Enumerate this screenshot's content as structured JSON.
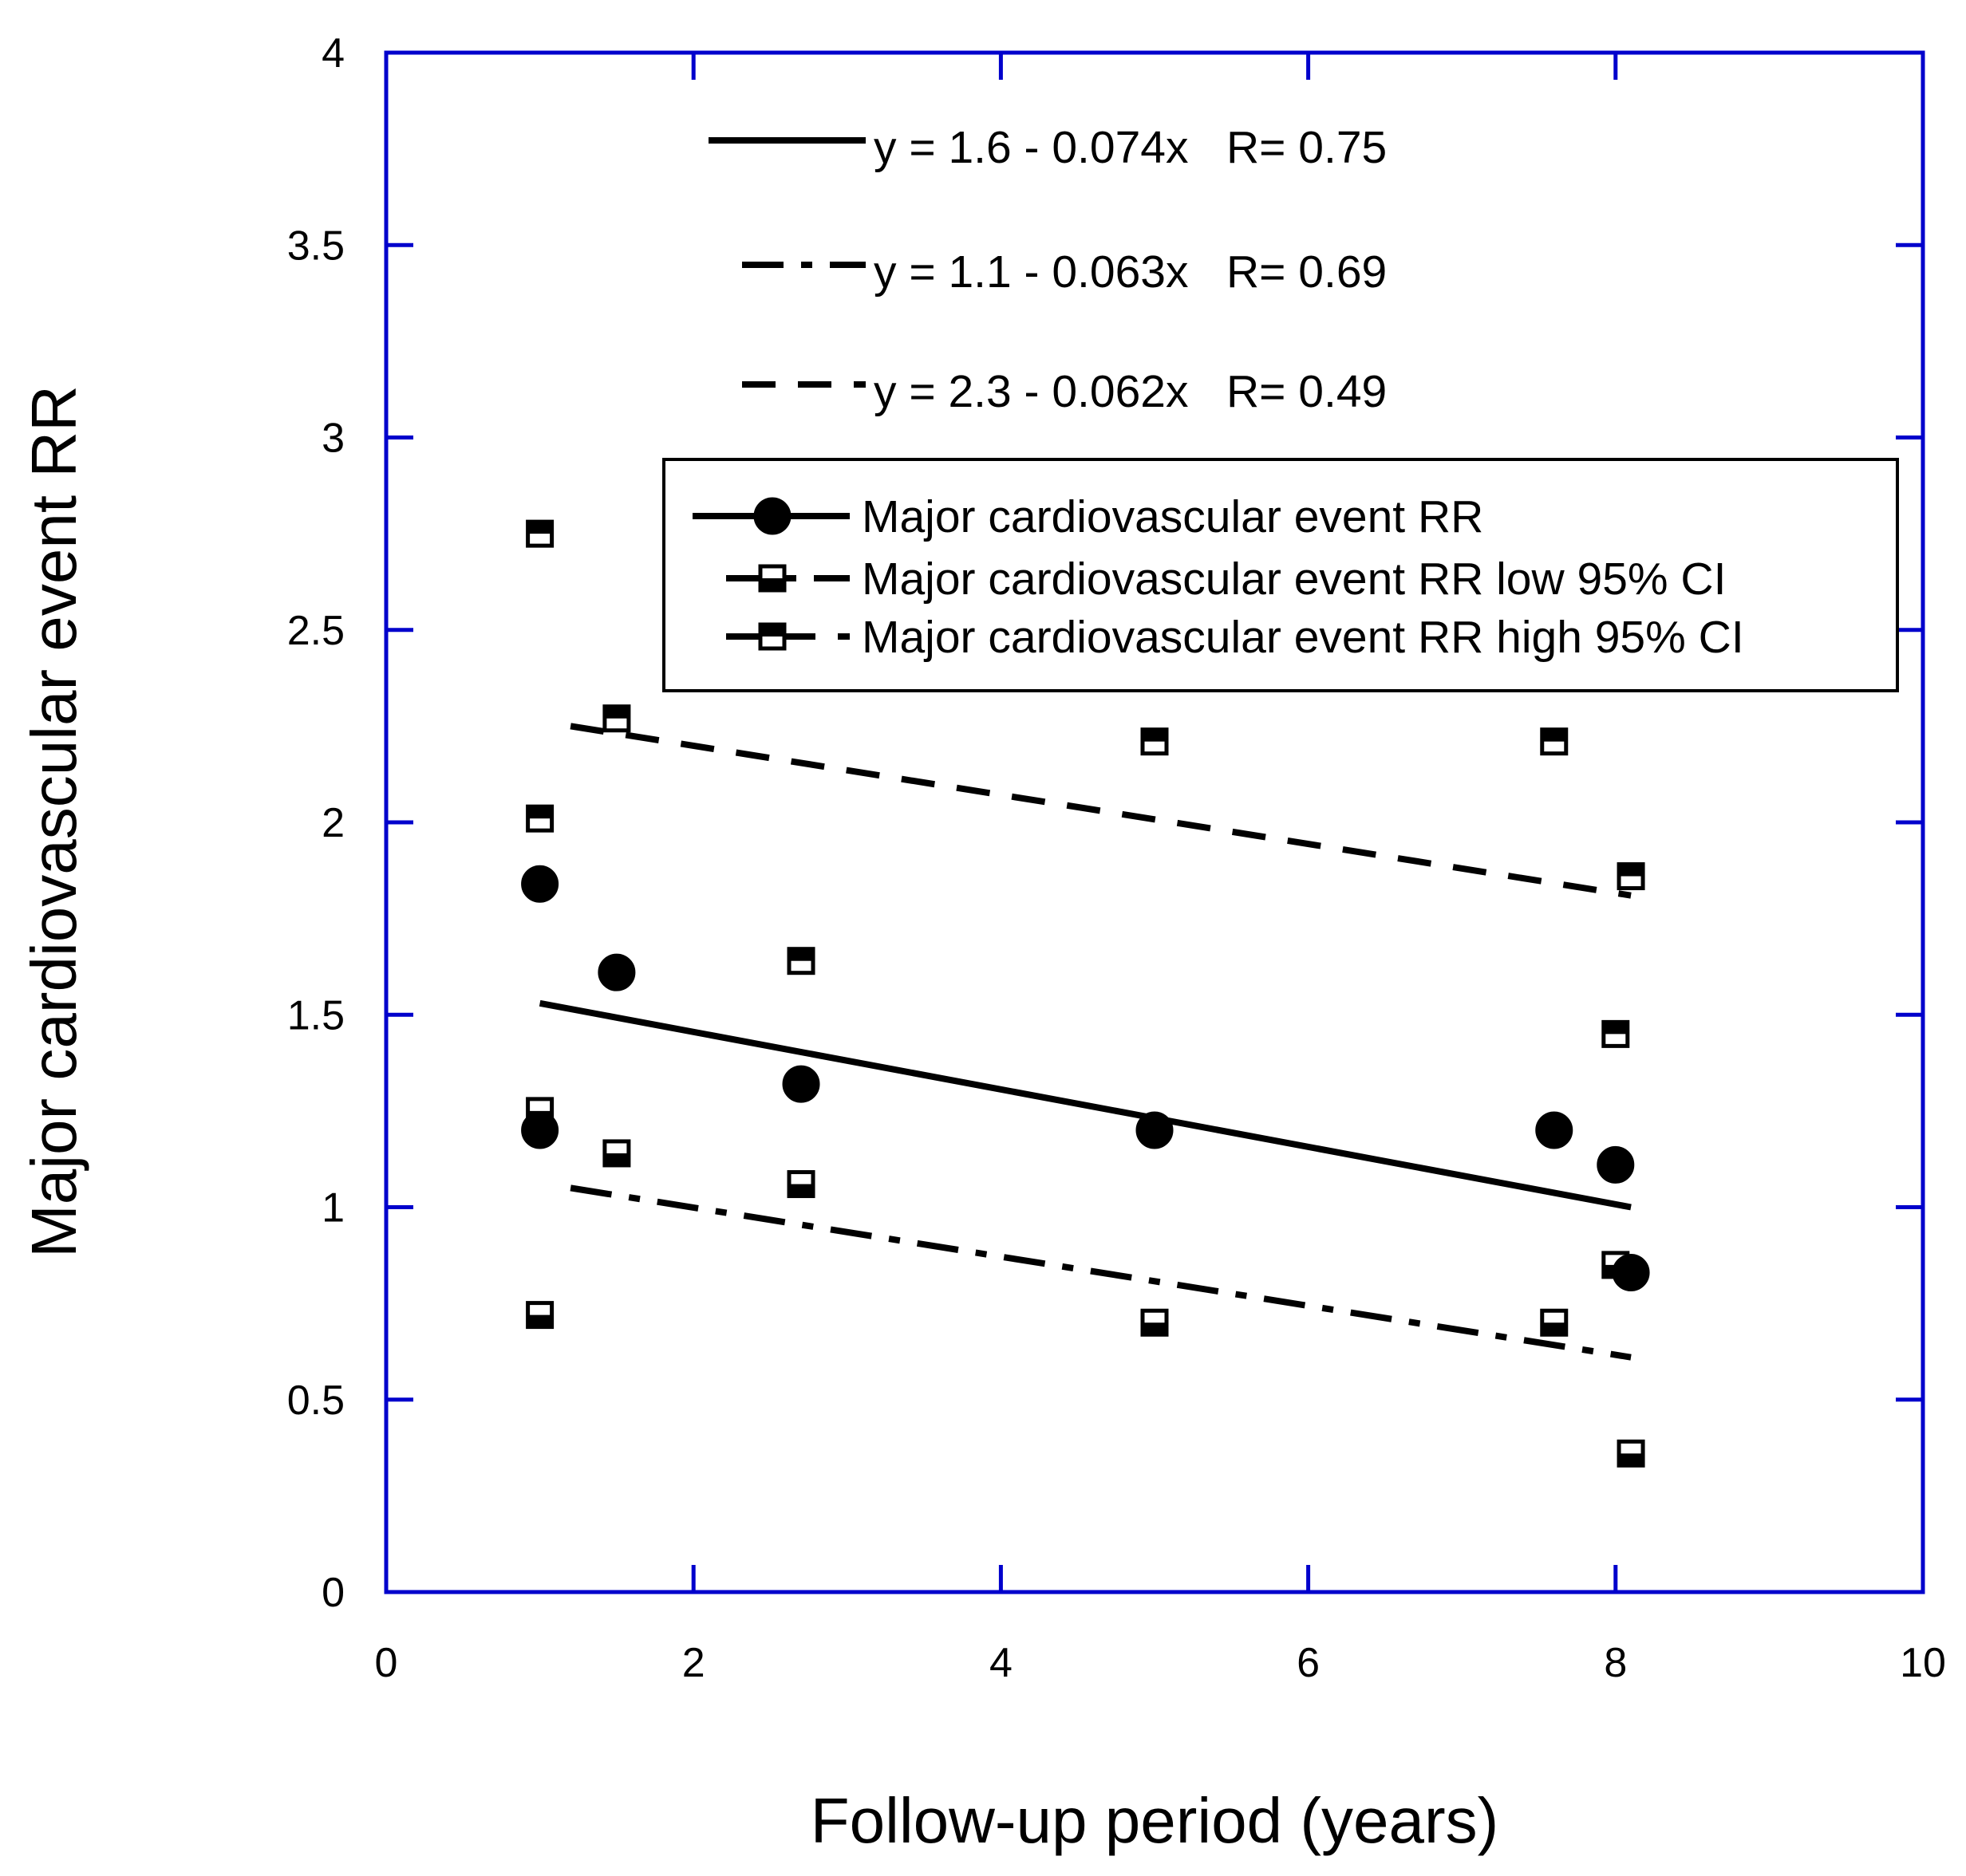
{
  "chart_data": {
    "type": "scatter",
    "xlabel": "Follow-up period (years)",
    "ylabel": "Major cardiovascular event RR",
    "xlim": [
      0,
      10
    ],
    "ylim": [
      0,
      4
    ],
    "x_ticks": [
      "0",
      "2",
      "4",
      "6",
      "8",
      "10"
    ],
    "y_ticks": [
      "0",
      "0.5",
      "1",
      "1.5",
      "2",
      "2.5",
      "3",
      "3.5",
      "4"
    ],
    "grid": false,
    "legend_position": "upper-right",
    "axis_color": "#0000cc",
    "series": [
      {
        "name": "Major cardiovascular event RR",
        "marker": "filled-circle",
        "points": [
          {
            "x": 1.0,
            "y": 1.84
          },
          {
            "x": 1.0,
            "y": 1.2
          },
          {
            "x": 1.5,
            "y": 1.61
          },
          {
            "x": 2.7,
            "y": 1.32
          },
          {
            "x": 5.0,
            "y": 1.2
          },
          {
            "x": 7.6,
            "y": 1.2
          },
          {
            "x": 8.0,
            "y": 1.11
          },
          {
            "x": 8.1,
            "y": 0.83
          }
        ]
      },
      {
        "name": "Major cardiovascular event RR low 95% CI",
        "marker": "half-filled-square",
        "points": [
          {
            "x": 1.0,
            "y": 1.25
          },
          {
            "x": 1.0,
            "y": 0.72
          },
          {
            "x": 1.5,
            "y": 1.14
          },
          {
            "x": 2.7,
            "y": 1.06
          },
          {
            "x": 5.0,
            "y": 0.7
          },
          {
            "x": 7.6,
            "y": 0.7
          },
          {
            "x": 8.0,
            "y": 0.85
          },
          {
            "x": 8.1,
            "y": 0.36
          }
        ]
      },
      {
        "name": "Major cardiovascular event RR high 95% CI",
        "marker": "half-filled-square",
        "points": [
          {
            "x": 1.0,
            "y": 2.75
          },
          {
            "x": 1.0,
            "y": 2.01
          },
          {
            "x": 1.5,
            "y": 2.27
          },
          {
            "x": 2.7,
            "y": 1.64
          },
          {
            "x": 5.0,
            "y": 2.21
          },
          {
            "x": 7.6,
            "y": 2.21
          },
          {
            "x": 8.0,
            "y": 1.45
          },
          {
            "x": 8.1,
            "y": 1.86
          }
        ]
      }
    ],
    "fit_lines": [
      {
        "label": "y = 1.6 - 0.074x   R= 0.75",
        "style": "solid",
        "points": [
          [
            1.0,
            1.53
          ],
          [
            8.1,
            1.0
          ]
        ]
      },
      {
        "label": "y = 1.1 - 0.063x   R= 0.69",
        "style": "dash-dot",
        "points": [
          [
            1.2,
            1.05
          ],
          [
            8.1,
            0.61
          ]
        ]
      },
      {
        "label": "y = 2.3 - 0.062x   R= 0.49",
        "style": "dashed",
        "points": [
          [
            1.2,
            2.25
          ],
          [
            8.1,
            1.81
          ]
        ]
      }
    ]
  }
}
